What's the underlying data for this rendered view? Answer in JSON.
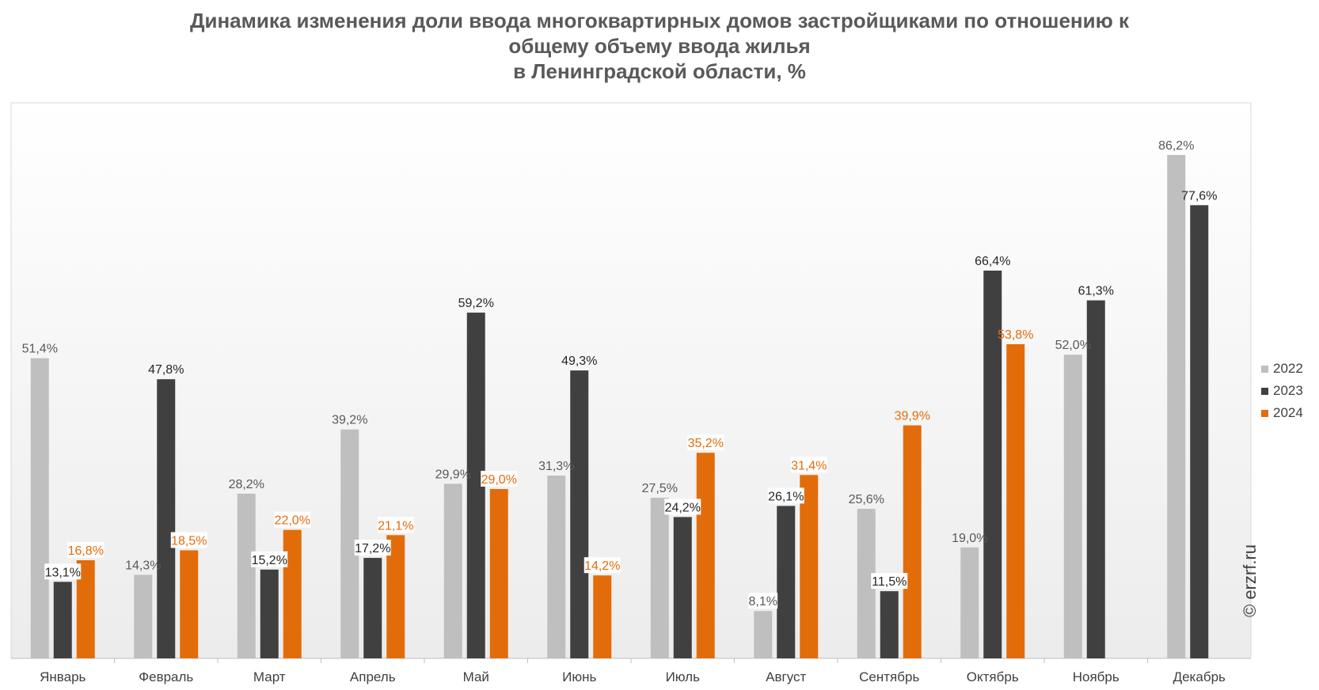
{
  "title_lines": [
    "Динамика изменения доли ввода многоквартирных домов застройщиками по отношению к",
    "общему объему ввода жилья",
    "в Ленинградской области, %"
  ],
  "watermark": "© erzrf.ru",
  "chart_data": {
    "type": "bar",
    "title": "Динамика изменения доли ввода многоквартирных домов застройщиками по отношению к общему объему ввода жилья в Ленинградской области, %",
    "categories": [
      "Январь",
      "Февраль",
      "Март",
      "Апрель",
      "Май",
      "Июнь",
      "Июль",
      "Август",
      "Сентябрь",
      "Октябрь",
      "Ноябрь",
      "Декабрь"
    ],
    "series": [
      {
        "name": "2022",
        "color": "#bfbfbf",
        "label_color": "#595959",
        "values": [
          51.4,
          14.3,
          28.2,
          39.2,
          29.9,
          31.3,
          27.5,
          8.1,
          25.6,
          19.0,
          52.0,
          86.2
        ],
        "labels": [
          "51,4%",
          "14,3%",
          "28,2%",
          "39,2%",
          "29,9%",
          "31,3%",
          "27,5%",
          "8,1%",
          "25,6%",
          "19,0%",
          "52,0%",
          "86,2%"
        ]
      },
      {
        "name": "2023",
        "color": "#404040",
        "label_color": "#262626",
        "values": [
          13.1,
          47.8,
          15.2,
          17.2,
          59.2,
          49.3,
          24.2,
          26.1,
          11.5,
          66.4,
          61.3,
          77.6
        ],
        "labels": [
          "13,1%",
          "47,8%",
          "15,2%",
          "17,2%",
          "59,2%",
          "49,3%",
          "24,2%",
          "26,1%",
          "11,5%",
          "66,4%",
          "61,3%",
          "77,6%"
        ]
      },
      {
        "name": "2024",
        "color": "#e36c0a",
        "label_color": "#e36c0a",
        "values": [
          16.8,
          18.5,
          22.0,
          21.1,
          29.0,
          14.2,
          35.2,
          31.4,
          39.9,
          53.8,
          null,
          null
        ],
        "labels": [
          "16,8%",
          "18,5%",
          "22,0%",
          "21,1%",
          "29,0%",
          "14,2%",
          "35,2%",
          "31,4%",
          "39,9%",
          "53,8%",
          null,
          null
        ]
      }
    ],
    "ylim": [
      0,
      100
    ],
    "grid": false,
    "legend_position": "right"
  }
}
